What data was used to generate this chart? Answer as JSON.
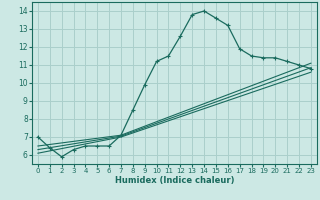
{
  "xlabel": "Humidex (Indice chaleur)",
  "xlim": [
    -0.5,
    23.5
  ],
  "ylim": [
    5.5,
    14.5
  ],
  "xticks": [
    0,
    1,
    2,
    3,
    4,
    5,
    6,
    7,
    8,
    9,
    10,
    11,
    12,
    13,
    14,
    15,
    16,
    17,
    18,
    19,
    20,
    21,
    22,
    23
  ],
  "yticks": [
    6,
    7,
    8,
    9,
    10,
    11,
    12,
    13,
    14
  ],
  "bg_color": "#cce8e4",
  "line_color": "#1a6b5e",
  "grid_color": "#aacfcb",
  "line1_x": [
    0,
    1,
    2,
    3,
    4,
    5,
    6,
    7,
    8,
    9,
    10,
    11,
    12,
    13,
    14,
    15,
    16,
    17,
    18,
    19,
    20,
    21,
    22,
    23
  ],
  "line1_y": [
    7.0,
    6.4,
    5.9,
    6.3,
    6.5,
    6.5,
    6.5,
    7.1,
    8.5,
    9.9,
    11.2,
    11.5,
    12.6,
    13.8,
    14.0,
    13.6,
    13.2,
    11.9,
    11.5,
    11.4,
    11.4,
    11.2,
    11.0,
    10.8
  ],
  "line2_x": [
    0,
    7,
    23
  ],
  "line2_y": [
    6.5,
    7.1,
    11.1
  ],
  "line3_x": [
    0,
    7,
    23
  ],
  "line3_y": [
    6.3,
    7.05,
    10.85
  ],
  "line4_x": [
    0,
    7,
    23
  ],
  "line4_y": [
    6.1,
    7.0,
    10.6
  ]
}
